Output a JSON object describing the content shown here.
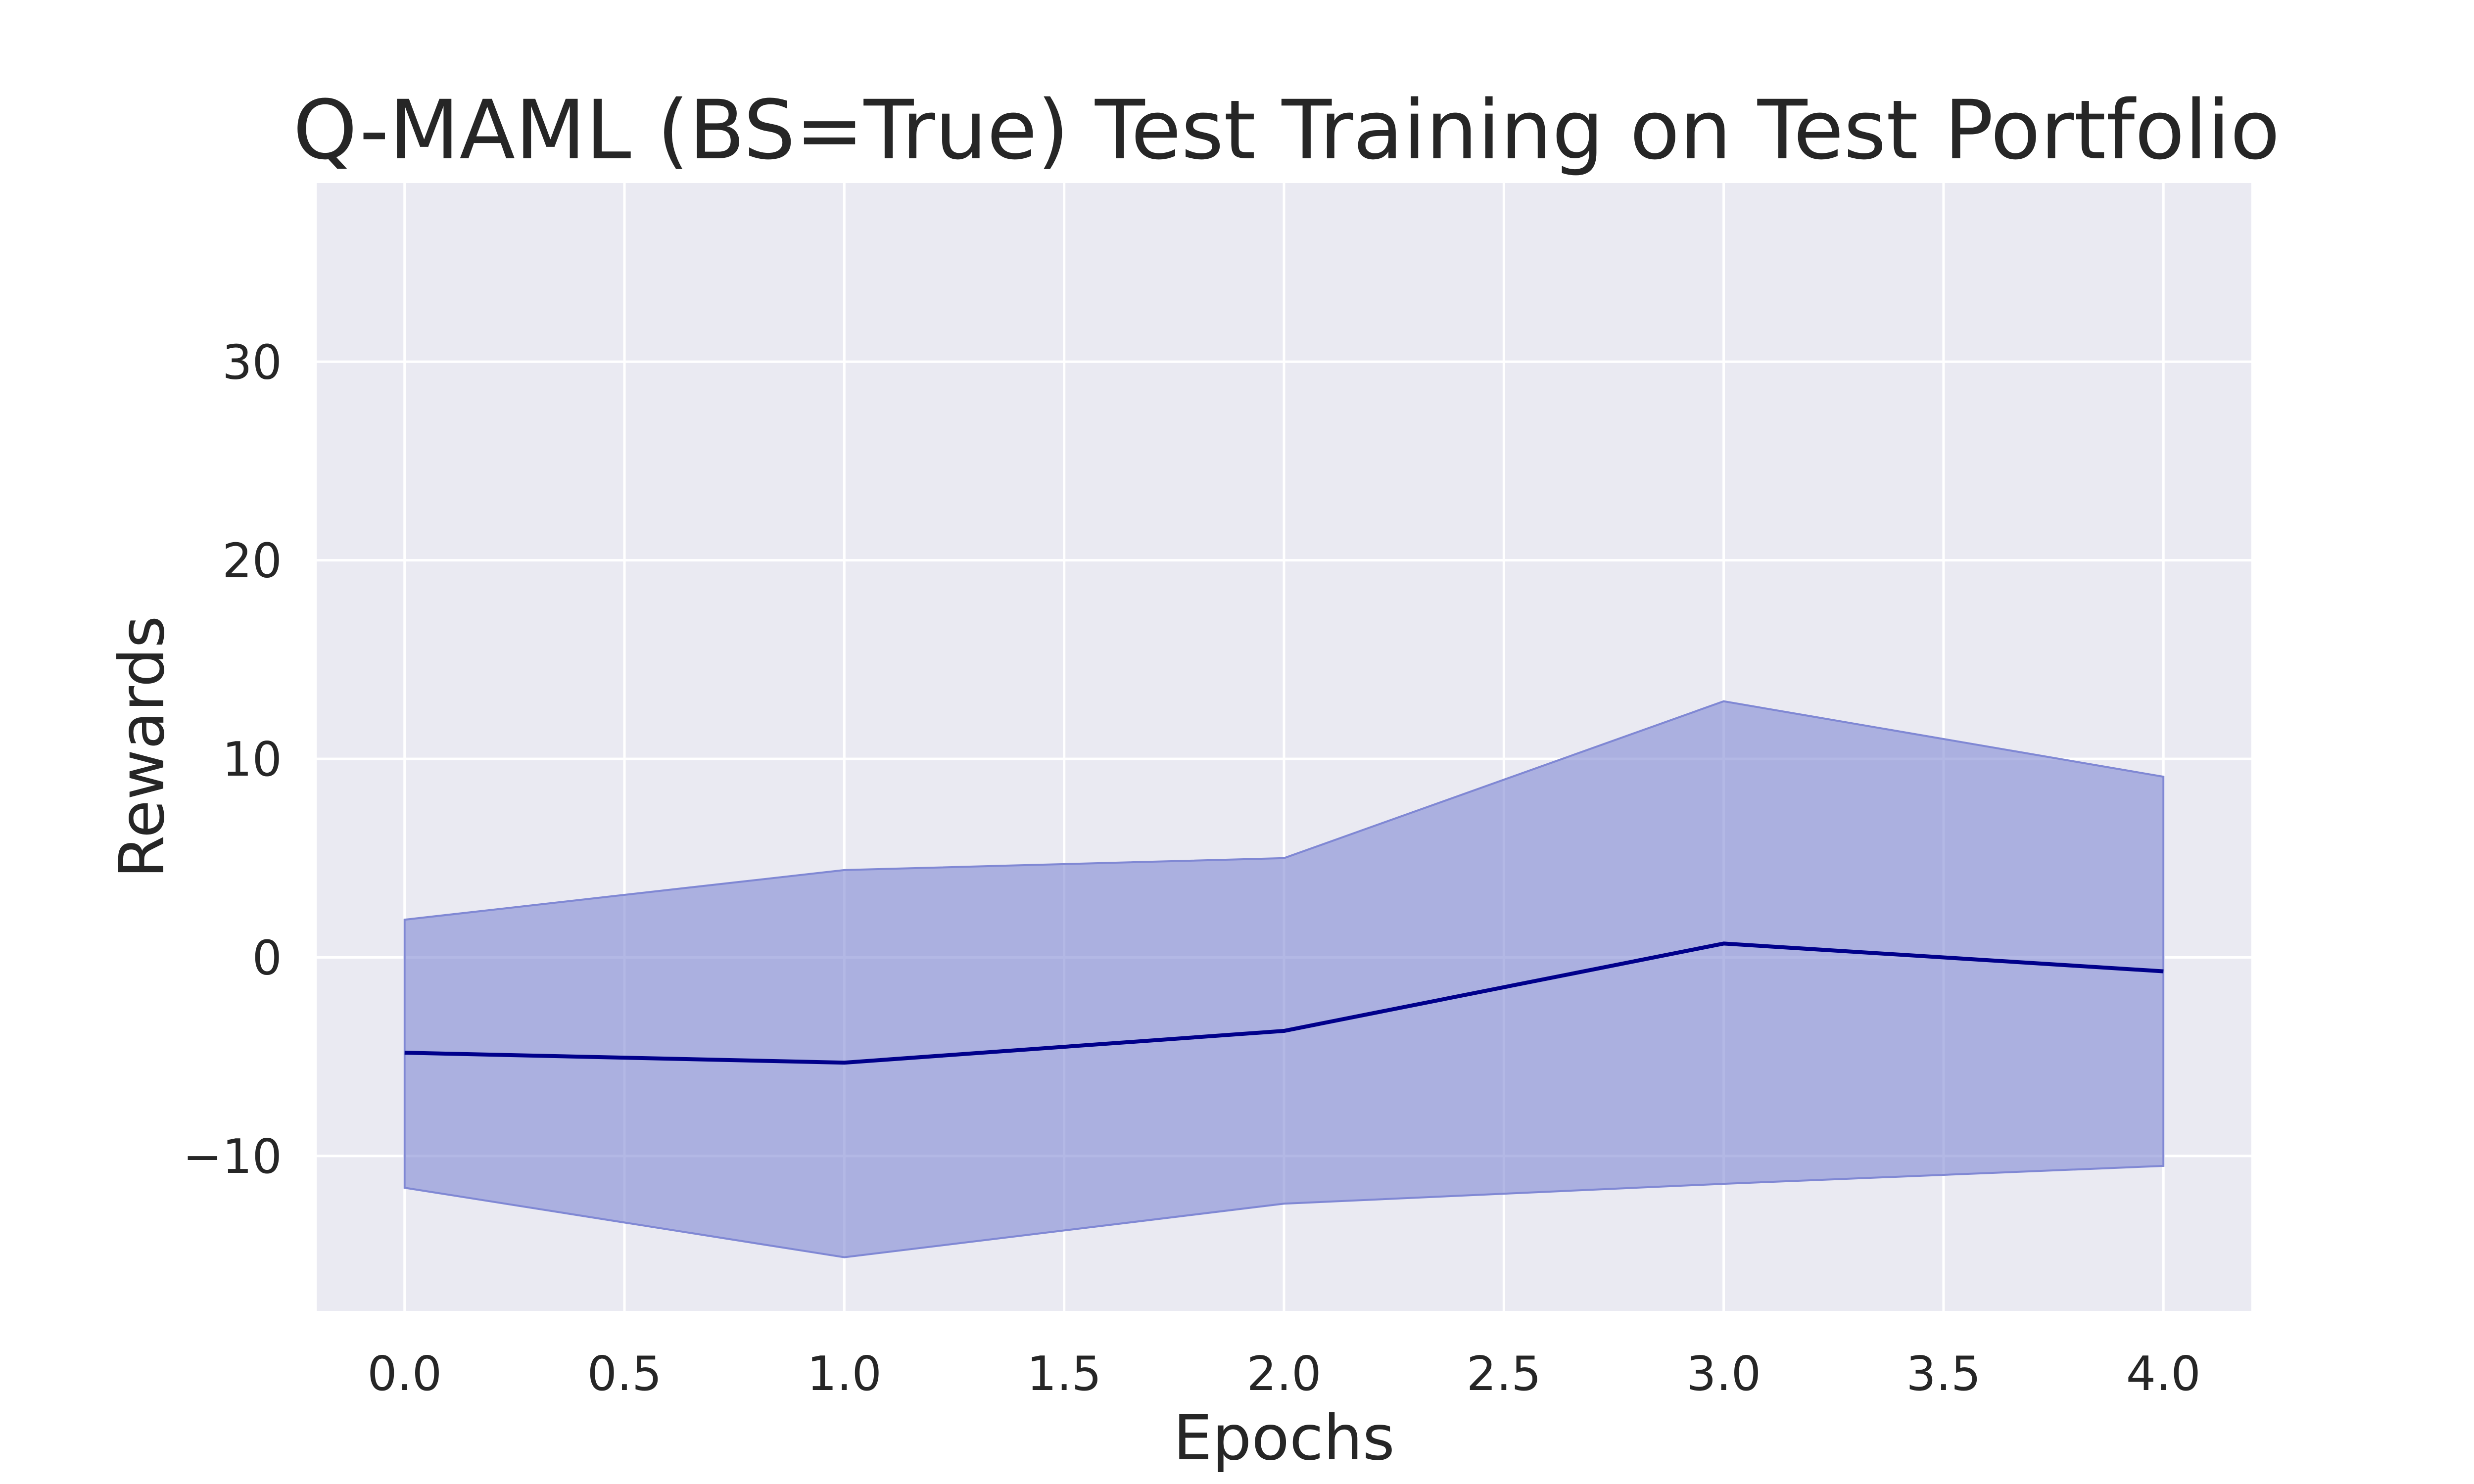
{
  "chart_data": {
    "type": "line",
    "title": "Q-MAML (BS=True) Test Training on Test Portfolio",
    "xlabel": "Epochs",
    "ylabel": "Rewards",
    "xlim": [
      -0.2,
      4.2
    ],
    "ylim": [
      -17.8,
      39
    ],
    "grid": true,
    "x_ticks": [
      0.0,
      0.5,
      1.0,
      1.5,
      2.0,
      2.5,
      3.0,
      3.5,
      4.0
    ],
    "x_tick_labels": [
      "0.0",
      "0.5",
      "1.0",
      "1.5",
      "2.0",
      "2.5",
      "3.0",
      "3.5",
      "4.0"
    ],
    "y_ticks": [
      -10,
      0,
      10,
      20,
      30
    ],
    "y_tick_labels": [
      "−10",
      "0",
      "10",
      "20",
      "30"
    ],
    "series": [
      {
        "name": "mean",
        "x": [
          0,
          1,
          2,
          3,
          4
        ],
        "values": [
          -4.8,
          -5.3,
          -3.7,
          0.7,
          -0.7
        ],
        "upper": [
          1.9,
          4.4,
          5.0,
          12.9,
          9.1
        ],
        "lower": [
          -11.6,
          -15.1,
          -12.4,
          -11.4,
          -10.5
        ],
        "line_color": "#00008b",
        "band_color": "#8088d4"
      }
    ],
    "background_color": "#eaeaf2",
    "grid_color": "#ffffff"
  }
}
